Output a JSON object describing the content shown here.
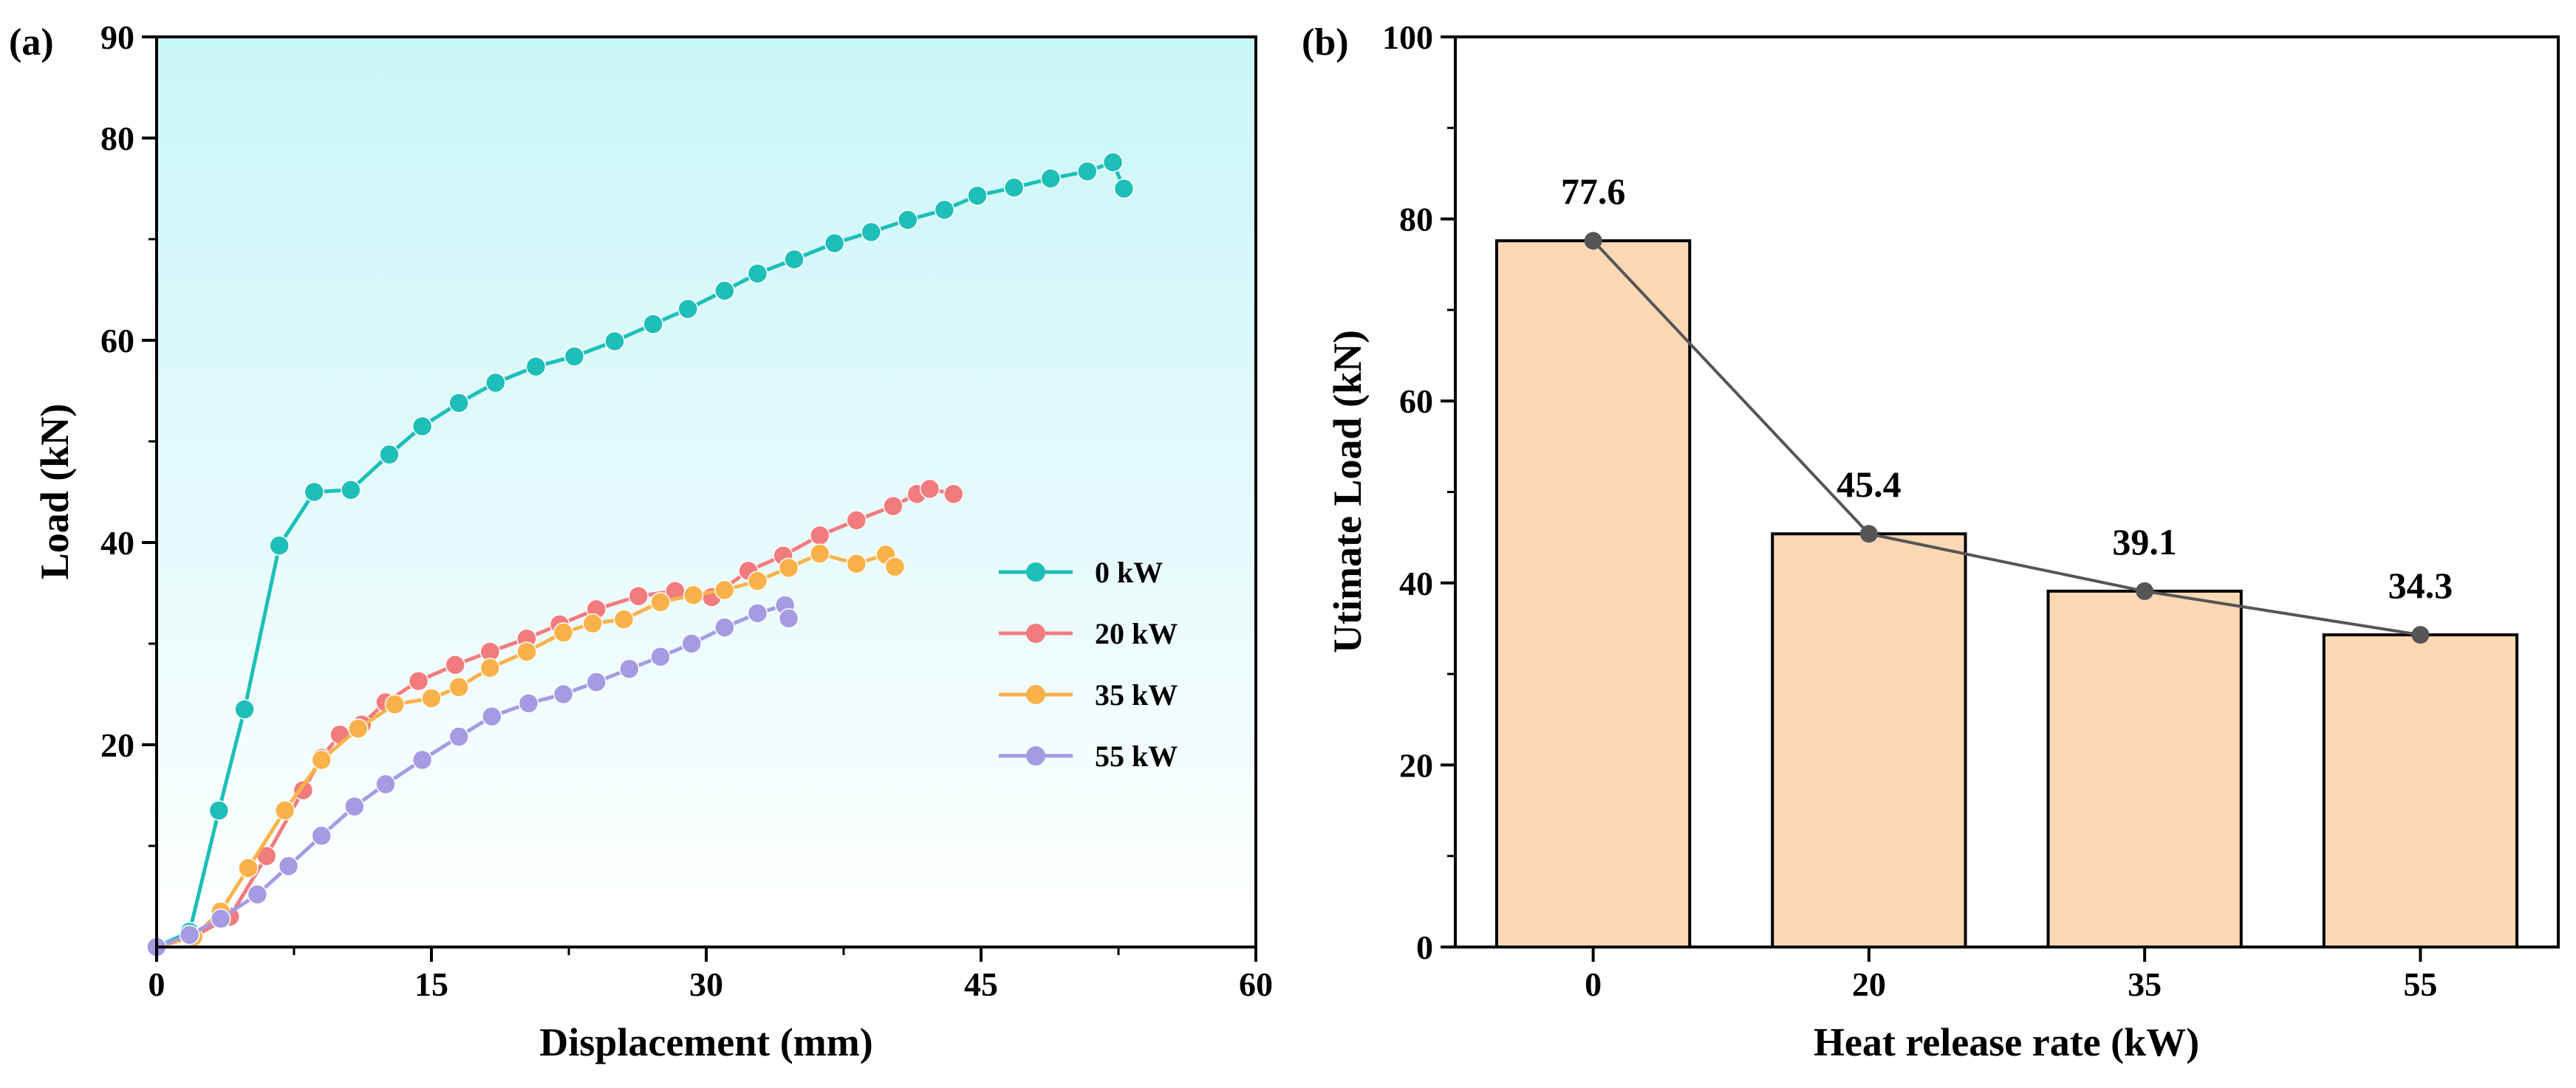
{
  "chart_data": [
    {
      "type": "line",
      "panel_label": "(a)",
      "xlabel": "Displacement (mm)",
      "ylabel": "Load (kN)",
      "xlim": [
        0,
        60
      ],
      "ylim": [
        0,
        90
      ],
      "xticks": [
        "0",
        "15",
        "30",
        "45",
        "60"
      ],
      "yticks": [
        "20",
        "40",
        "60",
        "80",
        "90"
      ],
      "grid": false,
      "background": "light cyan gradient",
      "legend_position": "right-middle",
      "series": [
        {
          "name": "0 kW",
          "color": "#1dbfb8",
          "x": [
            0,
            1.8,
            3.4,
            4.8,
            6.7,
            8.6,
            10.6,
            12.7,
            14.5,
            16.5,
            18.5,
            20.7,
            22.8,
            25.0,
            27.1,
            29.0,
            31.0,
            32.8,
            34.8,
            37.0,
            39.0,
            41.0,
            43.0,
            44.8,
            46.8,
            48.8,
            50.8,
            52.2,
            52.8
          ],
          "y": [
            0,
            1.5,
            13.5,
            23.5,
            39.7,
            45.0,
            45.2,
            48.7,
            51.5,
            53.8,
            55.8,
            57.4,
            58.4,
            59.9,
            61.6,
            63.1,
            64.9,
            66.6,
            68.0,
            69.6,
            70.7,
            71.9,
            72.9,
            74.3,
            75.1,
            76.0,
            76.7,
            77.6,
            75.0
          ]
        },
        {
          "name": "20 kW",
          "color": "#f27b7e",
          "x": [
            0,
            2.0,
            4.0,
            6.0,
            8.0,
            9.0,
            10.0,
            11.2,
            12.5,
            14.3,
            16.3,
            18.2,
            20.2,
            22.0,
            24.0,
            26.3,
            28.3,
            30.3,
            32.3,
            34.2,
            36.2,
            38.2,
            40.2,
            41.5,
            42.2,
            43.5
          ],
          "y": [
            0,
            1.0,
            3.0,
            9.0,
            15.5,
            18.7,
            21.0,
            22.0,
            24.2,
            26.3,
            27.9,
            29.2,
            30.5,
            31.9,
            33.4,
            34.7,
            35.2,
            34.6,
            37.2,
            38.7,
            40.7,
            42.2,
            43.6,
            44.8,
            45.3,
            44.8
          ]
        },
        {
          "name": "35 kW",
          "color": "#f9b24a",
          "x": [
            0,
            2.0,
            3.5,
            5.0,
            7.0,
            9.0,
            11.0,
            13.0,
            15.0,
            16.5,
            18.2,
            20.2,
            22.2,
            23.8,
            25.5,
            27.5,
            29.3,
            31.0,
            32.8,
            34.5,
            36.2,
            38.2,
            39.8,
            40.3
          ],
          "y": [
            0,
            1.0,
            3.5,
            7.8,
            13.5,
            18.5,
            21.6,
            24.0,
            24.6,
            25.7,
            27.6,
            29.2,
            31.1,
            32.0,
            32.4,
            34.1,
            34.8,
            35.3,
            36.2,
            37.5,
            38.9,
            37.9,
            38.8,
            37.6
          ]
        },
        {
          "name": "55 kW",
          "color": "#a59be3",
          "x": [
            0,
            1.8,
            3.5,
            5.5,
            7.2,
            9.0,
            10.8,
            12.5,
            14.5,
            16.5,
            18.3,
            20.3,
            22.2,
            24.0,
            25.8,
            27.5,
            29.2,
            31.0,
            32.8,
            34.3,
            34.5
          ],
          "y": [
            0,
            1.2,
            2.8,
            5.2,
            8.0,
            11.0,
            13.9,
            16.1,
            18.5,
            20.8,
            22.8,
            24.1,
            25.0,
            26.2,
            27.5,
            28.7,
            30.0,
            31.6,
            33.0,
            33.8,
            32.5
          ]
        }
      ]
    },
    {
      "type": "bar",
      "panel_label": "(b)",
      "xlabel": "Heat release rate (kW)",
      "ylabel": "Utimate Load (kN)",
      "categories": [
        "0",
        "20",
        "35",
        "55"
      ],
      "values": [
        77.6,
        45.4,
        39.1,
        34.3
      ],
      "data_labels": [
        "77.6",
        "45.4",
        "39.1",
        "34.3"
      ],
      "ylim": [
        0,
        100
      ],
      "yticks": [
        "0",
        "20",
        "40",
        "60",
        "80",
        "100"
      ],
      "bar_color": "#fdd8b4",
      "line_color": "#555555",
      "grid": false
    }
  ]
}
